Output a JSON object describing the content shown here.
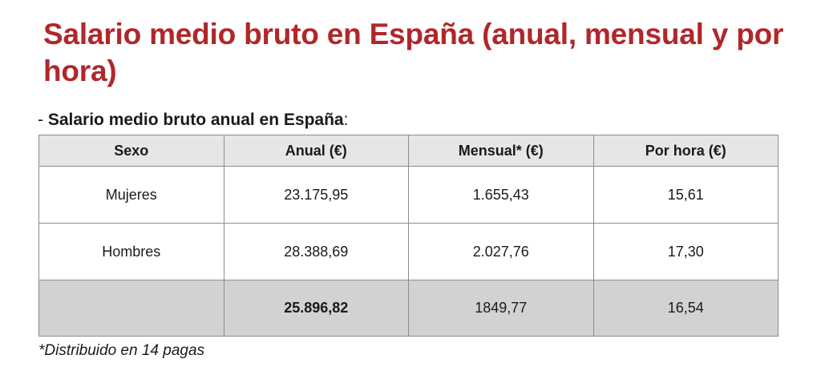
{
  "title": "Salario medio bruto en España (anual, mensual y por hora)",
  "subtitle": {
    "prefix": "- ",
    "bold": "Salario medio bruto anual en España",
    "suffix": ":"
  },
  "table": {
    "headers": [
      "Sexo",
      "Anual (€)",
      "Mensual* (€)",
      "Por hora (€)"
    ],
    "rows": [
      [
        "Mujeres",
        "23.175,95",
        "1.655,43",
        "15,61"
      ],
      [
        "Hombres",
        "28.388,69",
        "2.027,76",
        "17,30"
      ]
    ],
    "total": [
      "",
      "25.896,82",
      "1849,77",
      "16,54"
    ]
  },
  "footnote": "*Distribuido en 14 pagas",
  "colors": {
    "title": "#b0272a",
    "header_bg": "#e6e6e6",
    "total_bg": "#d2d2d2"
  }
}
